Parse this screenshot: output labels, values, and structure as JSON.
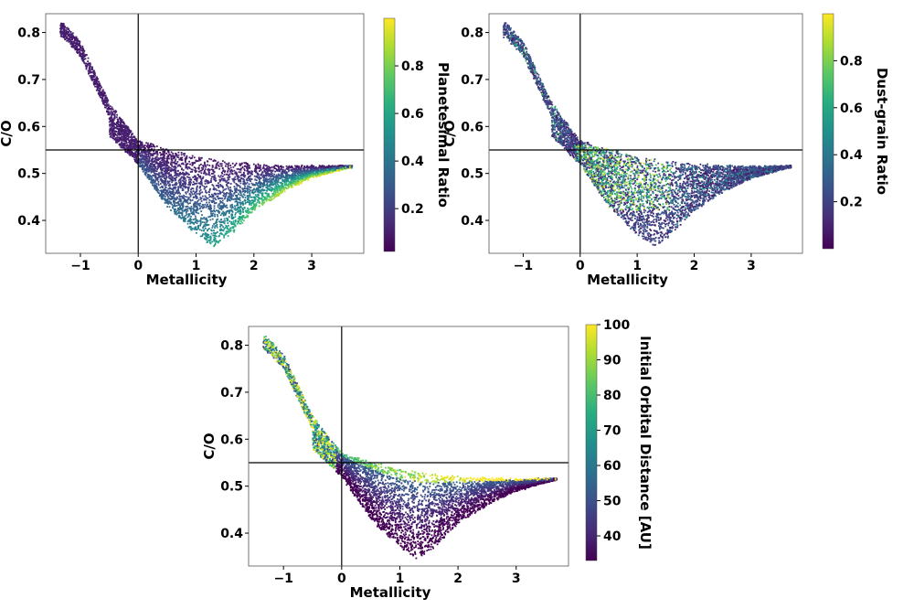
{
  "chart_data": [
    {
      "type": "scatter",
      "xlabel": "Metallicity",
      "ylabel": "C/O",
      "xlim": [
        -1.6,
        3.9
      ],
      "ylim": [
        0.33,
        0.84
      ],
      "xticks": [
        -1,
        0,
        1,
        2,
        3
      ],
      "xtick_labels": [
        "−1",
        "0",
        "1",
        "2",
        "3"
      ],
      "yticks": [
        0.4,
        0.5,
        0.6,
        0.7,
        0.8
      ],
      "ytick_labels": [
        "0.4",
        "0.5",
        "0.6",
        "0.7",
        "0.8"
      ],
      "reference_lines": {
        "vertical_x": 0,
        "horizontal_y": 0.55
      },
      "colormap": "viridis",
      "colorbar": {
        "label": "Planetesimal Ratio",
        "range": [
          0.02,
          1.0
        ],
        "ticks": [
          0.2,
          0.4,
          0.6,
          0.8
        ],
        "tick_labels": [
          "0.2",
          "0.4",
          "0.6",
          "0.8"
        ]
      },
      "color_trend": "low (purple) along the upper branch and at low metallicity; high (yellow) along the lower edge at metallicity 1.5–3.5",
      "distribution": {
        "upper_branch": [
          [
            -1.3,
            0.82
          ],
          [
            -1.0,
            0.78
          ],
          [
            -0.5,
            0.65
          ],
          [
            0,
            0.57
          ],
          [
            1,
            0.535
          ],
          [
            2,
            0.52
          ],
          [
            3,
            0.515
          ],
          [
            3.7,
            0.515
          ]
        ],
        "lower_envelope": [
          [
            -0.5,
            0.58
          ],
          [
            0,
            0.52
          ],
          [
            0.5,
            0.43
          ],
          [
            1.0,
            0.37
          ],
          [
            1.3,
            0.345
          ],
          [
            1.6,
            0.37
          ],
          [
            2.0,
            0.42
          ],
          [
            2.5,
            0.46
          ],
          [
            3.0,
            0.49
          ],
          [
            3.7,
            0.515
          ]
        ]
      }
    },
    {
      "type": "scatter",
      "xlabel": "Metallicity",
      "ylabel": "C/O",
      "xlim": [
        -1.6,
        3.9
      ],
      "ylim": [
        0.33,
        0.84
      ],
      "xticks": [
        -1,
        0,
        1,
        2,
        3
      ],
      "xtick_labels": [
        "−1",
        "0",
        "1",
        "2",
        "3"
      ],
      "yticks": [
        0.4,
        0.5,
        0.6,
        0.7,
        0.8
      ],
      "ytick_labels": [
        "0.4",
        "0.5",
        "0.6",
        "0.7",
        "0.8"
      ],
      "reference_lines": {
        "vertical_x": 0,
        "horizontal_y": 0.55
      },
      "colormap": "viridis",
      "colorbar": {
        "label": "Dust-grain Ratio",
        "range": [
          0.0,
          1.0
        ],
        "ticks": [
          0.2,
          0.4,
          0.6,
          0.8
        ],
        "tick_labels": [
          "0.2",
          "0.4",
          "0.6",
          "0.8"
        ]
      },
      "color_trend": "mixed; mostly low (purple/blue) with a green–yellow concentration near metallicity 0–1.5 just below C/O 0.55",
      "distribution": {
        "upper_branch": [
          [
            -1.3,
            0.82
          ],
          [
            -1.0,
            0.78
          ],
          [
            -0.5,
            0.65
          ],
          [
            0,
            0.57
          ],
          [
            1,
            0.535
          ],
          [
            2,
            0.52
          ],
          [
            3,
            0.515
          ],
          [
            3.7,
            0.515
          ]
        ],
        "lower_envelope": [
          [
            -0.5,
            0.58
          ],
          [
            0,
            0.52
          ],
          [
            0.5,
            0.43
          ],
          [
            1.0,
            0.37
          ],
          [
            1.3,
            0.345
          ],
          [
            1.6,
            0.37
          ],
          [
            2.0,
            0.42
          ],
          [
            2.5,
            0.46
          ],
          [
            3.0,
            0.49
          ],
          [
            3.7,
            0.515
          ]
        ]
      }
    },
    {
      "type": "scatter",
      "xlabel": "Metallicity",
      "ylabel": "C/O",
      "xlim": [
        -1.6,
        3.9
      ],
      "ylim": [
        0.33,
        0.84
      ],
      "xticks": [
        -1,
        0,
        1,
        2,
        3
      ],
      "xtick_labels": [
        "−1",
        "0",
        "1",
        "2",
        "3"
      ],
      "yticks": [
        0.4,
        0.5,
        0.6,
        0.7,
        0.8
      ],
      "ytick_labels": [
        "0.4",
        "0.5",
        "0.6",
        "0.7",
        "0.8"
      ],
      "reference_lines": {
        "vertical_x": 0,
        "horizontal_y": 0.55
      },
      "colormap": "viridis",
      "colorbar": {
        "label": "Initial Orbital Distance [AU]",
        "range": [
          33,
          100
        ],
        "ticks": [
          40,
          50,
          60,
          70,
          80,
          90,
          100
        ],
        "tick_labels": [
          "40",
          "50",
          "60",
          "70",
          "80",
          "90",
          "100"
        ]
      },
      "color_trend": "high (yellow) along the upper branch at metallicity above 1 and scattered at low metallicity; low (purple) across the bulk of the lower lobe",
      "distribution": {
        "upper_branch": [
          [
            -1.3,
            0.82
          ],
          [
            -1.0,
            0.78
          ],
          [
            -0.5,
            0.65
          ],
          [
            0,
            0.57
          ],
          [
            1,
            0.535
          ],
          [
            2,
            0.52
          ],
          [
            3,
            0.515
          ],
          [
            3.7,
            0.515
          ]
        ],
        "lower_envelope": [
          [
            -0.5,
            0.58
          ],
          [
            0,
            0.52
          ],
          [
            0.5,
            0.43
          ],
          [
            1.0,
            0.37
          ],
          [
            1.3,
            0.345
          ],
          [
            1.6,
            0.37
          ],
          [
            2.0,
            0.42
          ],
          [
            2.5,
            0.46
          ],
          [
            3.0,
            0.49
          ],
          [
            3.7,
            0.515
          ]
        ]
      }
    }
  ]
}
